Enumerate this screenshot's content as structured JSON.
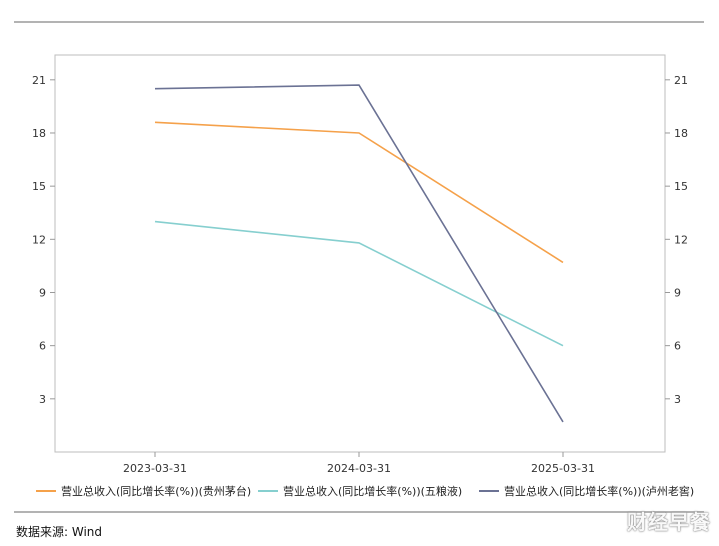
{
  "chart_data": {
    "type": "line",
    "categories": [
      "2023-03-31",
      "2024-03-31",
      "2025-03-31"
    ],
    "series": [
      {
        "name": "营业总收入(同比增长率(%))(贵州茅台)",
        "values": [
          18.6,
          18.0,
          10.7
        ],
        "color": "#f5a14a"
      },
      {
        "name": "营业总收入(同比增长率(%))(五粮液)",
        "values": [
          13.0,
          11.8,
          6.0
        ],
        "color": "#86cfcf"
      },
      {
        "name": "营业总收入(同比增长率(%))(泸州老窖)",
        "values": [
          20.5,
          20.7,
          1.7
        ],
        "color": "#6b7294"
      }
    ],
    "ylim": [
      0,
      22.4
    ],
    "yticks": [
      3,
      6,
      9,
      12,
      15,
      18,
      21
    ],
    "ytick_labels": [
      "3",
      "6",
      "9",
      "12",
      "15",
      "18",
      "21"
    ],
    "secondary_y_axis": true,
    "legend": "bottom",
    "grid": false
  },
  "source_text": "数据来源: Wind",
  "watermark_text": "财经早餐"
}
